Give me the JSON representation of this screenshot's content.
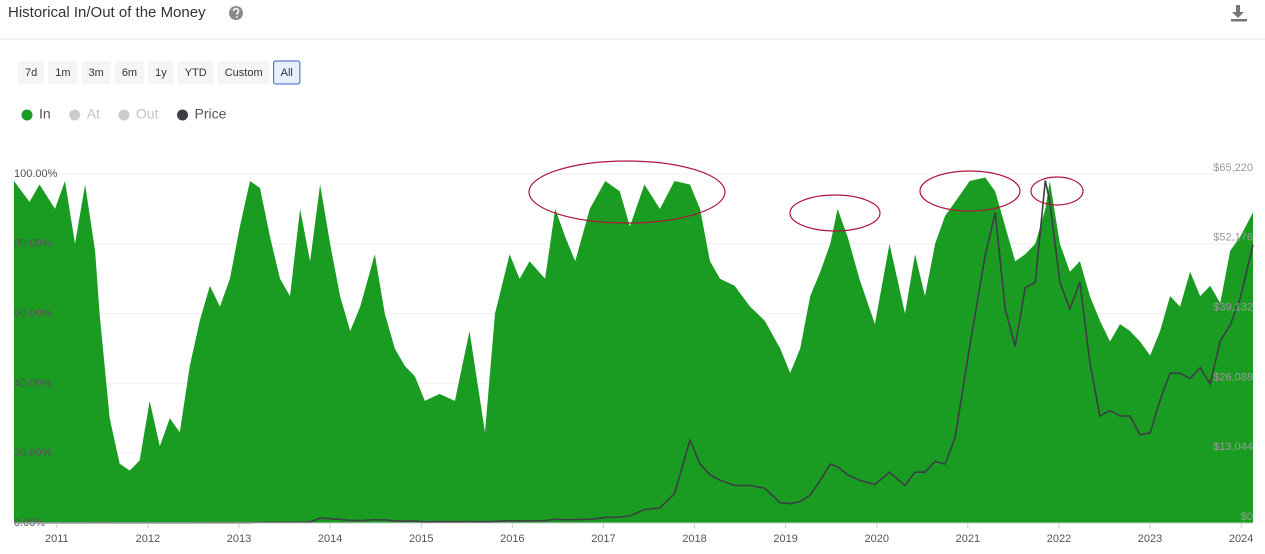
{
  "header": {
    "title": "Historical In/Out of the Money"
  },
  "range_buttons": [
    "7d",
    "1m",
    "3m",
    "6m",
    "1y",
    "YTD",
    "Custom",
    "All"
  ],
  "active_range": "All",
  "chart_data": {
    "type": "area",
    "x": [
      2010.53,
      2010.7,
      2010.81,
      2010.98,
      2011.09,
      2011.2,
      2011.31,
      2011.42,
      2011.47,
      2011.58,
      2011.69,
      2011.8,
      2011.91,
      2012.02,
      2012.13,
      2012.24,
      2012.35,
      2012.46,
      2012.57,
      2012.68,
      2012.79,
      2012.9,
      2013.01,
      2013.12,
      2013.23,
      2013.34,
      2013.45,
      2013.56,
      2013.67,
      2013.78,
      2013.89,
      2014.0,
      2014.11,
      2014.22,
      2014.33,
      2014.49,
      2014.6,
      2014.71,
      2014.82,
      2014.93,
      2015.04,
      2015.2,
      2015.37,
      2015.53,
      2015.7,
      2015.81,
      2015.97,
      2016.08,
      2016.19,
      2016.36,
      2016.47,
      2016.58,
      2016.69,
      2016.85,
      2017.02,
      2017.18,
      2017.29,
      2017.45,
      2017.62,
      2017.78,
      2017.95,
      2018.06,
      2018.17,
      2018.28,
      2018.44,
      2018.61,
      2018.77,
      2018.94,
      2019.05,
      2019.16,
      2019.27,
      2019.38,
      2019.49,
      2019.57,
      2019.68,
      2019.81,
      2019.98,
      2020.14,
      2020.31,
      2020.42,
      2020.53,
      2020.64,
      2020.75,
      2020.86,
      2021.02,
      2021.19,
      2021.3,
      2021.41,
      2021.52,
      2021.63,
      2021.74,
      2021.85,
      2021.9,
      2022.01,
      2022.12,
      2022.23,
      2022.34,
      2022.45,
      2022.56,
      2022.67,
      2022.78,
      2022.89,
      2023.0,
      2023.11,
      2023.22,
      2023.33,
      2023.44,
      2023.55,
      2023.66,
      2023.77,
      2023.88,
      2023.99,
      2024.13
    ],
    "series": [
      {
        "name": "In",
        "color": "#1a9c23",
        "values": [
          98,
          92,
          97,
          90,
          98,
          80,
          97,
          78,
          60,
          30,
          17,
          15,
          18,
          35,
          22,
          30,
          26,
          45,
          58,
          68,
          62,
          70,
          85,
          98,
          96,
          82,
          70,
          65,
          90,
          75,
          97,
          80,
          65,
          55,
          62,
          77,
          60,
          50,
          45,
          42,
          35,
          37,
          35,
          55,
          26,
          60,
          77,
          70,
          75,
          70,
          90,
          82,
          75,
          90,
          98,
          95,
          85,
          97,
          90,
          98,
          97,
          90,
          75,
          70,
          68,
          62,
          58,
          50,
          43,
          50,
          65,
          72,
          80,
          90,
          82,
          70,
          57,
          80,
          60,
          77,
          65,
          80,
          88,
          92,
          98,
          99,
          95,
          85,
          75,
          77,
          80,
          90,
          98,
          80,
          72,
          75,
          65,
          58,
          52,
          57,
          55,
          52,
          48,
          55,
          65,
          62,
          72,
          65,
          68,
          63,
          78,
          82,
          89
        ]
      },
      {
        "name": "Price",
        "color": "#3d3d45",
        "axis": "y2",
        "values": [
          0.07,
          0.1,
          0.2,
          0.3,
          1,
          0.9,
          3,
          18,
          15,
          10,
          5,
          3,
          3,
          6,
          5,
          5,
          5,
          7,
          11,
          12,
          11,
          13,
          14,
          25,
          90,
          110,
          110,
          90,
          130,
          200,
          900,
          800,
          650,
          500,
          450,
          600,
          580,
          400,
          350,
          350,
          220,
          250,
          240,
          280,
          230,
          300,
          430,
          380,
          420,
          450,
          700,
          600,
          610,
          700,
          1000,
          1100,
          1300,
          2500,
          2800,
          5500,
          15500,
          11000,
          9000,
          8000,
          7000,
          7000,
          6500,
          3800,
          3600,
          4000,
          5200,
          8000,
          11000,
          10500,
          9000,
          8000,
          7200,
          9500,
          7000,
          9500,
          9500,
          11500,
          11000,
          16000,
          33000,
          50000,
          58000,
          40000,
          33000,
          44000,
          45000,
          64000,
          60000,
          45000,
          40000,
          45000,
          30000,
          20000,
          21000,
          20000,
          20000,
          16500,
          16800,
          23000,
          28000,
          28000,
          27000,
          29000,
          26000,
          34000,
          37000,
          42000,
          52000
        ]
      }
    ],
    "inactive_series": [
      {
        "name": "At",
        "color": "#cccccc"
      },
      {
        "name": "Out",
        "color": "#cccccc"
      }
    ],
    "xlim": [
      2010.53,
      2024.13
    ],
    "xticks": [
      2011,
      2012,
      2013,
      2014,
      2015,
      2016,
      2017,
      2018,
      2019,
      2020,
      2021,
      2022,
      2023,
      2024
    ],
    "ylim": [
      0,
      100
    ],
    "yticks": [
      {
        "value": 0,
        "label": "0.00%"
      },
      {
        "value": 20,
        "label": "20.00%"
      },
      {
        "value": 40,
        "label": "40.00%"
      },
      {
        "value": 60,
        "label": "60.00%"
      },
      {
        "value": 80,
        "label": "80.00%"
      },
      {
        "value": 100,
        "label": "100.00%"
      }
    ],
    "y2lim": [
      0,
      65220
    ],
    "y2ticks": [
      {
        "value": 0,
        "label": "$0"
      },
      {
        "value": 13044,
        "label": "$13,044"
      },
      {
        "value": 26088,
        "label": "$26,088"
      },
      {
        "value": 39132,
        "label": "$39,132"
      },
      {
        "value": 52176,
        "label": "$52,176"
      },
      {
        "value": 65220,
        "label": "$65,220"
      }
    ],
    "grid": true
  }
}
